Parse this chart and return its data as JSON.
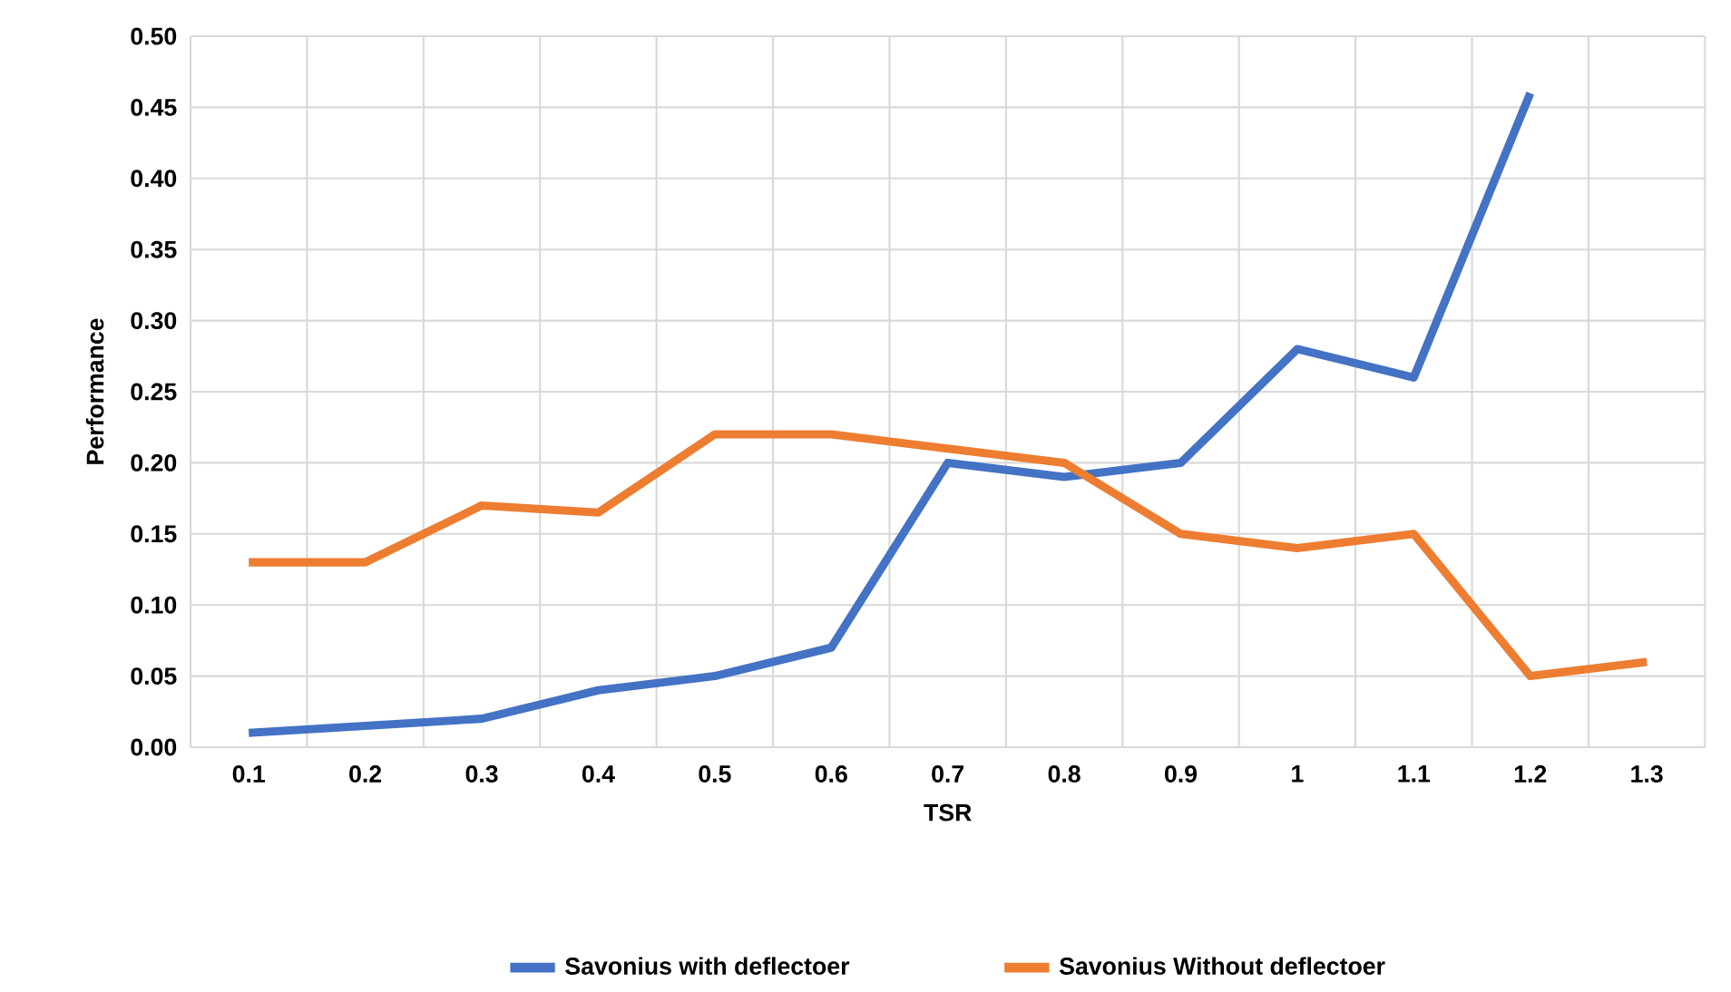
{
  "chart_data": {
    "type": "line",
    "xlabel": "TSR",
    "ylabel": "Performance",
    "categories": [
      "0.1",
      "0.2",
      "0.3",
      "0.4",
      "0.5",
      "0.6",
      "0.7",
      "0.8",
      "0.9",
      "1",
      "1.1",
      "1.2",
      "1.3"
    ],
    "series": [
      {
        "name": "Savonius with deflectoer",
        "color": "#4472c4",
        "values": [
          0.01,
          0.015,
          0.02,
          0.04,
          0.05,
          0.07,
          0.2,
          0.19,
          0.2,
          0.28,
          0.26,
          0.46,
          null
        ]
      },
      {
        "name": "Savonius Without deflectoer",
        "color": "#ed7d31",
        "values": [
          0.13,
          0.13,
          0.17,
          0.165,
          0.22,
          0.22,
          0.21,
          0.2,
          0.15,
          0.14,
          0.15,
          0.05,
          0.06
        ]
      }
    ],
    "ylim": [
      0,
      0.5
    ],
    "yticks": [
      {
        "value": 0,
        "label": "0.00"
      },
      {
        "value": 0.05,
        "label": "0.05"
      },
      {
        "value": 0.1,
        "label": "0.10"
      },
      {
        "value": 0.15,
        "label": "0.15"
      },
      {
        "value": 0.2,
        "label": "0.20"
      },
      {
        "value": 0.25,
        "label": "0.25"
      },
      {
        "value": 0.3,
        "label": "0.30"
      },
      {
        "value": 0.35,
        "label": "0.35"
      },
      {
        "value": 0.4,
        "label": "0.40"
      },
      {
        "value": 0.45,
        "label": "0.45"
      },
      {
        "value": 0.5,
        "label": "0.50"
      }
    ],
    "grid": true,
    "legend": "bottom",
    "marker": "none",
    "line_style": "solid"
  }
}
